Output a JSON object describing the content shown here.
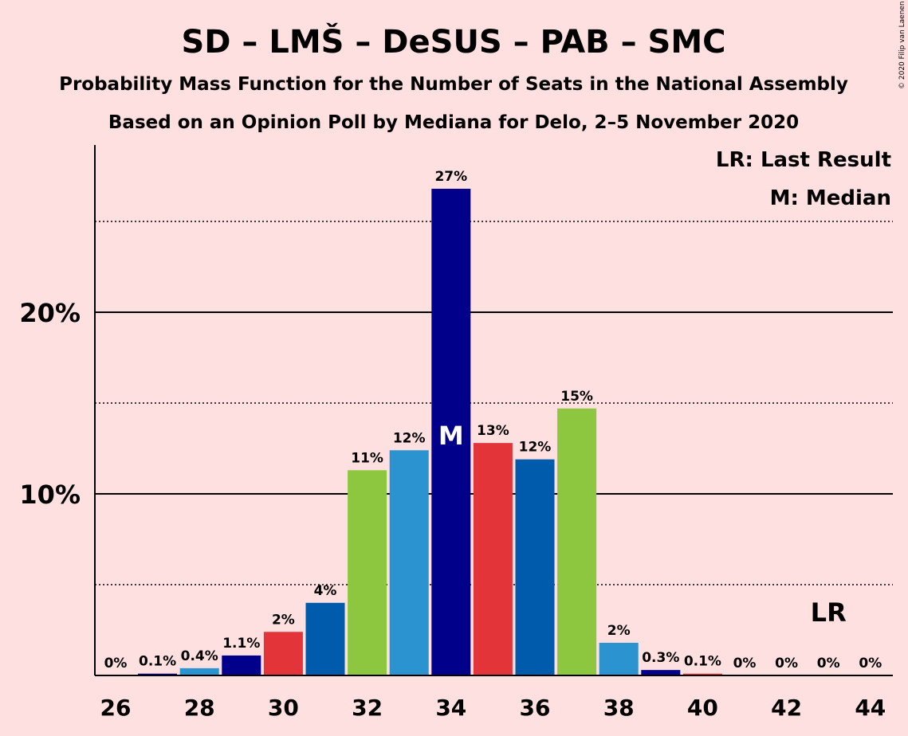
{
  "title": "SD – LMŠ – DeSUS – PAB – SMC",
  "subtitle": "Probability Mass Function for the Number of Seats in the National Assembly",
  "subtitle2": "Based on an Opinion Poll by Mediana for Delo, 2–5 November 2020",
  "copyright": "© 2020 Filip van Laenen",
  "legend": {
    "last_result": "LR: Last Result",
    "median": "M: Median"
  },
  "markers": {
    "median_label": "M",
    "median_seat": 34,
    "last_result_label": "LR",
    "last_result_seat": 43
  },
  "colors": {
    "background": "#FFE0E0",
    "palette": [
      "#00008B",
      "#E3343A",
      "#005BAC",
      "#8DC63F",
      "#2B93D0"
    ]
  },
  "chart_data": {
    "type": "bar",
    "x": [
      26,
      27,
      28,
      29,
      30,
      31,
      32,
      33,
      34,
      35,
      36,
      37,
      38,
      39,
      40,
      41,
      42,
      43,
      44
    ],
    "values": [
      0,
      0.1,
      0.4,
      1.1,
      2.4,
      4.0,
      11.3,
      12.4,
      26.8,
      12.8,
      11.9,
      14.7,
      1.8,
      0.3,
      0.1,
      0,
      0,
      0,
      0
    ],
    "data_labels": [
      "0%",
      "0.1%",
      "0.4%",
      "1.1%",
      "2%",
      "4%",
      "11%",
      "12%",
      "27%",
      "13%",
      "12%",
      "15%",
      "2%",
      "0.3%",
      "0.1%",
      "0%",
      "0%",
      "0%",
      "0%"
    ],
    "bar_colors": [
      "#00008B",
      "#00008B",
      "#2B93D0",
      "#00008B",
      "#E3343A",
      "#005BAC",
      "#8DC63F",
      "#2B93D0",
      "#00008B",
      "#E3343A",
      "#005BAC",
      "#8DC63F",
      "#2B93D0",
      "#00008B",
      "#E3343A",
      "#005BAC",
      "#8DC63F",
      "#2B93D0",
      "#00008B"
    ],
    "x_ticks": [
      26,
      28,
      30,
      32,
      34,
      36,
      38,
      40,
      42,
      44
    ],
    "y_ticks": [
      {
        "value": 10,
        "label": "10%"
      },
      {
        "value": 20,
        "label": "20%"
      }
    ],
    "y_minor_gridlines": [
      5,
      15,
      25
    ],
    "ylim": [
      0,
      29
    ],
    "xlabel": "",
    "ylabel": "",
    "grid": true,
    "legend_position": "top-right"
  }
}
